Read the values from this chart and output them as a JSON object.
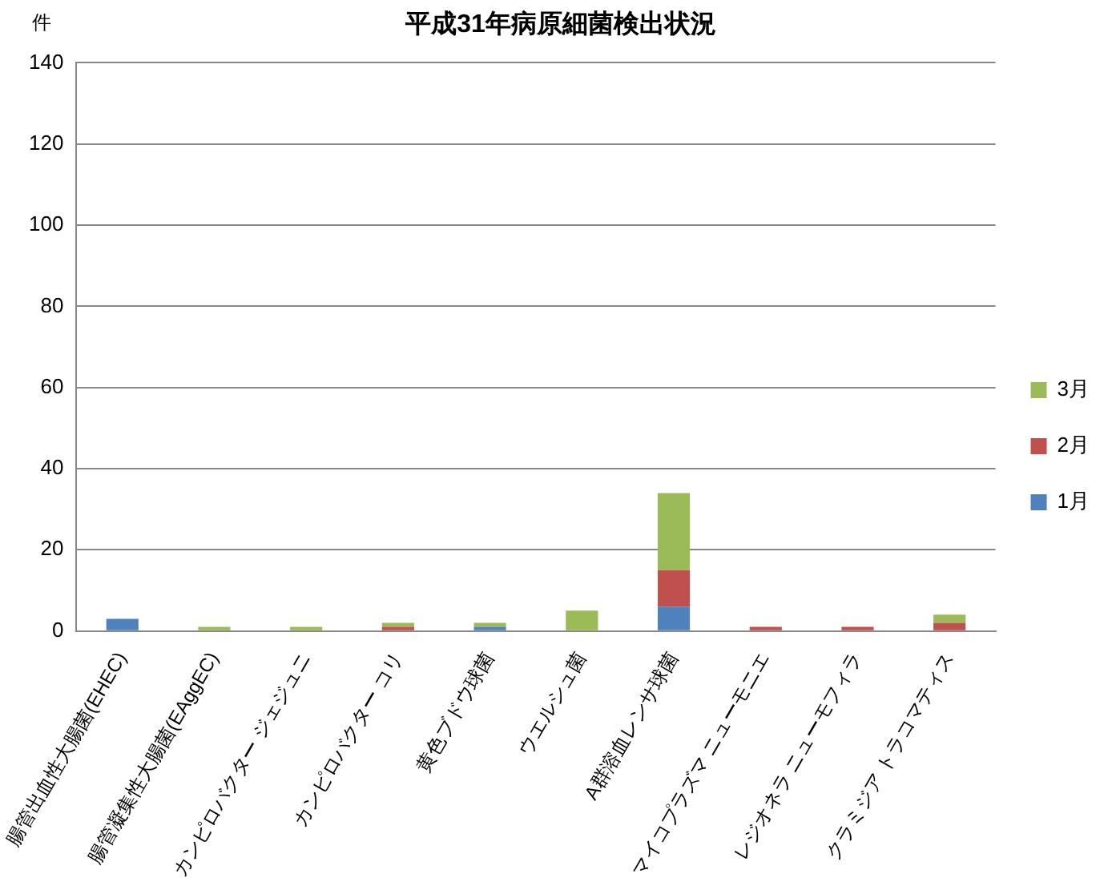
{
  "chart_data": {
    "type": "bar",
    "title": "平成31年病原細菌検出状況",
    "ylabel": "件",
    "categories": [
      "腸管出血性大腸菌(EHEC)",
      "腸管凝集性大腸菌(EAggEC)",
      "カンピロバクター ジェジュニ",
      "カンピロバクター コリ",
      "黄色ブドウ球菌",
      "ウエルシュ菌",
      "A群溶血レンサ球菌",
      "マイコプラズマ ニューモニエ",
      "レジオネラ ニューモフィラ",
      "クラミジア トラコマティス"
    ],
    "series": [
      {
        "name": "1月",
        "color": "#4f81bd",
        "values": [
          3,
          0,
          0,
          0,
          1,
          0,
          6,
          0,
          0,
          0
        ]
      },
      {
        "name": "2月",
        "color": "#c0504d",
        "values": [
          0,
          0,
          0,
          1,
          0,
          0,
          9,
          1,
          1,
          2
        ]
      },
      {
        "name": "3月",
        "color": "#9bbb59",
        "values": [
          0,
          1,
          1,
          1,
          1,
          5,
          19,
          0,
          0,
          2
        ]
      }
    ],
    "stacked": true,
    "ylim": [
      0,
      140
    ],
    "yticks": [
      0,
      20,
      40,
      60,
      80,
      100,
      120,
      140
    ],
    "grid": "y",
    "legend": "right"
  }
}
